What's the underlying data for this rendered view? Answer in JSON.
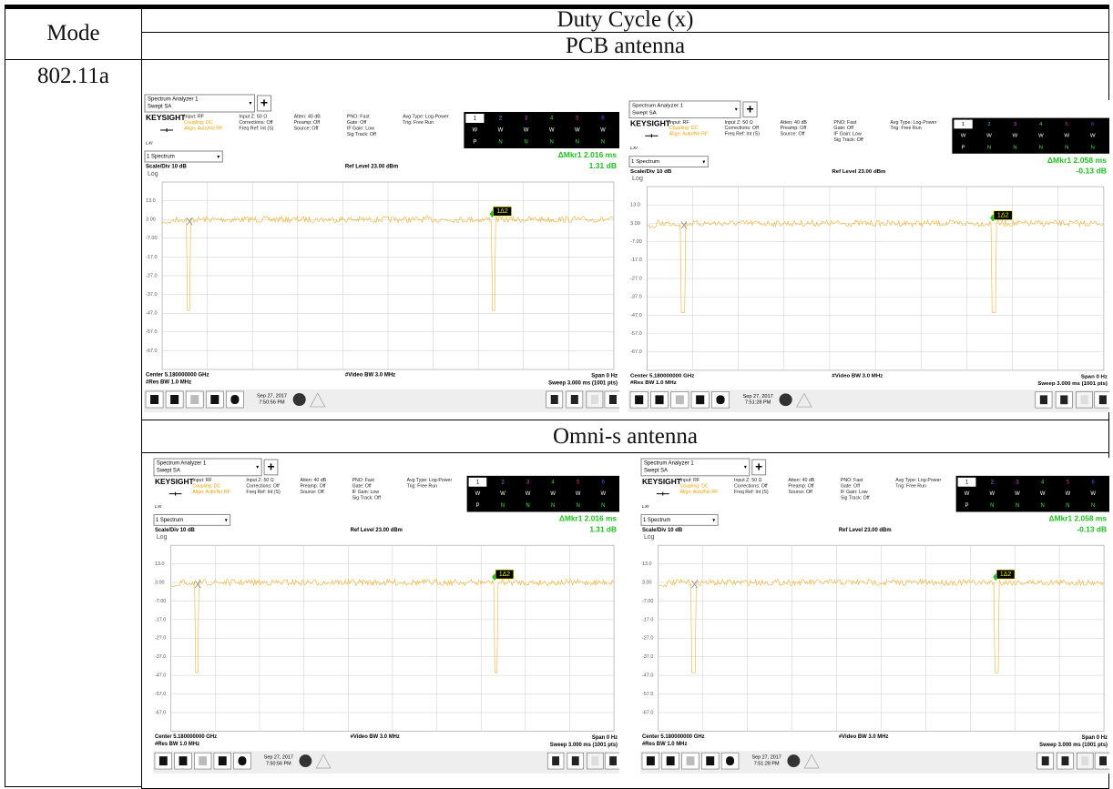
{
  "table": {
    "header": {
      "mode": "Mode",
      "duty_cycle": "Duty Cycle (x)",
      "pcb": "PCB antenna",
      "omni": "Omni-s antenna"
    },
    "row_label": "802.11a"
  },
  "analyzer": {
    "window": "Spectrum Analyzer 1",
    "mode": "Swept SA",
    "brand": "KEYSIGHT",
    "lxi": "LXI",
    "plus": "+",
    "info": [
      [
        "Input: RF",
        "Coupling: DC",
        "Align: Auto/No RF"
      ],
      [
        "Input Z: 50 Ω",
        "Corrections: Off",
        "Freq Ref: Int (S)"
      ],
      [
        "Atten: 40 dB",
        "Preamp: Off",
        "Source: Off"
      ],
      [
        "PNO: Fast",
        "Gate: Off",
        "IF Gain: Low",
        "Sig Track: Off"
      ],
      [
        "Avg Type: Log-Power",
        "Trig: Free Run"
      ]
    ],
    "trace_numbers": [
      "1",
      "2",
      "3",
      "4",
      "5",
      "6"
    ],
    "trace_types": [
      "W",
      "W",
      "W",
      "W",
      "W",
      "W"
    ],
    "trace_detectors": [
      "P",
      "N",
      "N",
      "N",
      "N",
      "N"
    ],
    "spectrum": "1 Spectrum",
    "scale": "Scale/Div 10 dB",
    "ref_level": "Ref Level 23.00 dBm",
    "log": "Log",
    "y_labels": [
      "13.0",
      "3.00",
      "-7.00",
      "-17.0",
      "-27.0",
      "-37.0",
      "-47.0",
      "-57.0",
      "-67.0"
    ],
    "marker_label": "1Δ2",
    "center": "Center 5.180000000 GHz",
    "res_bw": "#Res BW 1.0 MHz",
    "video_bw": "#Video BW 3.0 MHz",
    "span": "Span 0 Hz",
    "sweep": "Sweep 3.000 ms (1001 pts)"
  },
  "screens": [
    {
      "marker": "ΔMkr1  2.016 ms",
      "marker_value": "1.31 dB",
      "date": "Sep 27, 2017",
      "time": "7:50:56 PM"
    },
    {
      "marker": "ΔMkr1  2.058 ms",
      "marker_value": "-0.13 dB",
      "date": "Sep 27, 2017",
      "time": "7:51:28 PM"
    },
    {
      "marker": "ΔMkr1  2.016 ms",
      "marker_value": "1.31 dB",
      "date": "Sep 27, 2017",
      "time": "7:50:56 PM"
    },
    {
      "marker": "ΔMkr1  2.058 ms",
      "marker_value": "-0.13 dB",
      "date": "Sep 27, 2017",
      "time": "7:51:28 PM"
    }
  ]
}
